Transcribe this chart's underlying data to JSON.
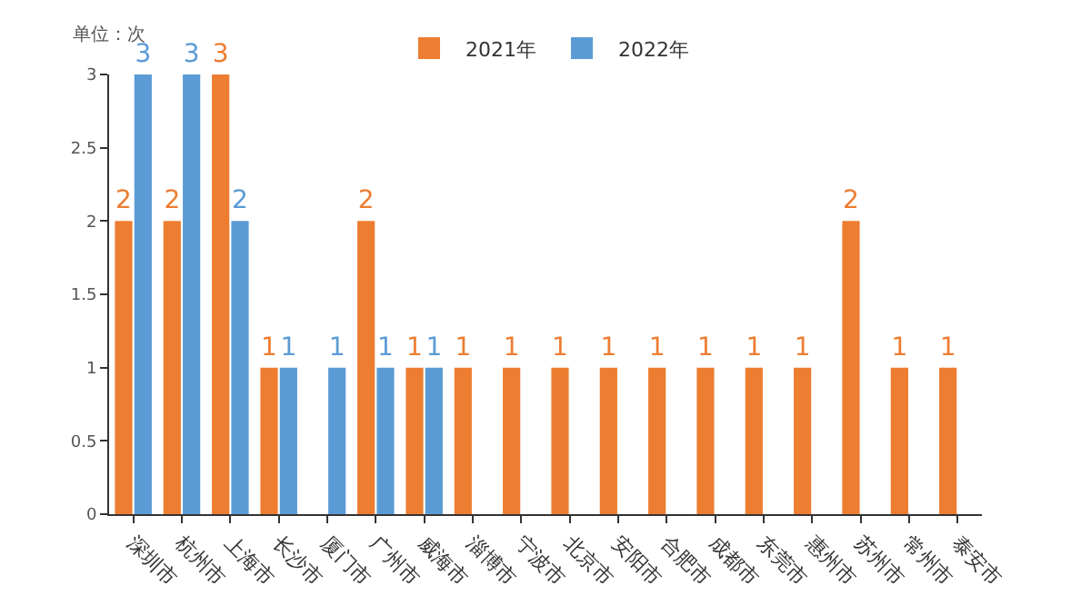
{
  "chart_data": {
    "type": "bar",
    "ylabel": "单位：次",
    "categories": [
      "深圳市",
      "杭州市",
      "上海市",
      "长沙市",
      "厦门市",
      "广州市",
      "威海市",
      "淄博市",
      "宁波市",
      "北京市",
      "安阳市",
      "合肥市",
      "成都市",
      "东莞市",
      "惠州市",
      "苏州市",
      "常州市",
      "泰安市"
    ],
    "series": [
      {
        "name": "2021年",
        "color": "#ed7d31",
        "values": [
          2,
          2,
          3,
          1,
          null,
          2,
          1,
          1,
          1,
          1,
          1,
          1,
          1,
          1,
          1,
          2,
          1,
          1
        ]
      },
      {
        "name": "2022年",
        "color": "#5b9bd5",
        "values": [
          3,
          3,
          2,
          1,
          1,
          1,
          1,
          null,
          null,
          null,
          null,
          null,
          null,
          null,
          null,
          null,
          null,
          null
        ]
      }
    ],
    "ylim": [
      0,
      3
    ],
    "yticks": [
      0,
      0.5,
      1,
      1.5,
      2,
      2.5,
      3
    ],
    "data_labels": true,
    "grid": false,
    "legend": "top"
  }
}
